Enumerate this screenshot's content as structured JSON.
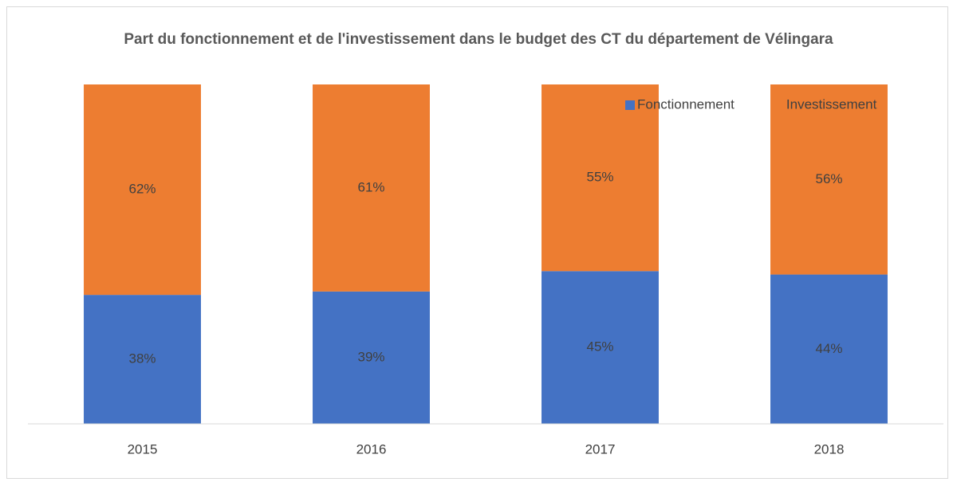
{
  "chart_data": {
    "type": "stacked_bar",
    "title": "Part du fonctionnement et de l'investissement dans le budget des CT du département de Vélingara",
    "categories": [
      "2015",
      "2016",
      "2017",
      "2018"
    ],
    "series": [
      {
        "name": "Fonctionnement",
        "color": "#4472c4",
        "values": [
          38,
          39,
          45,
          44
        ],
        "value_labels": [
          "38%",
          "39%",
          "45%",
          "44%"
        ]
      },
      {
        "name": "Investissement",
        "color": "#ed7d31",
        "values": [
          62,
          61,
          55,
          56
        ],
        "value_labels": [
          "62%",
          "61%",
          "55%",
          "56%"
        ]
      }
    ],
    "ylim": [
      0,
      100
    ],
    "legend": "top-right"
  }
}
